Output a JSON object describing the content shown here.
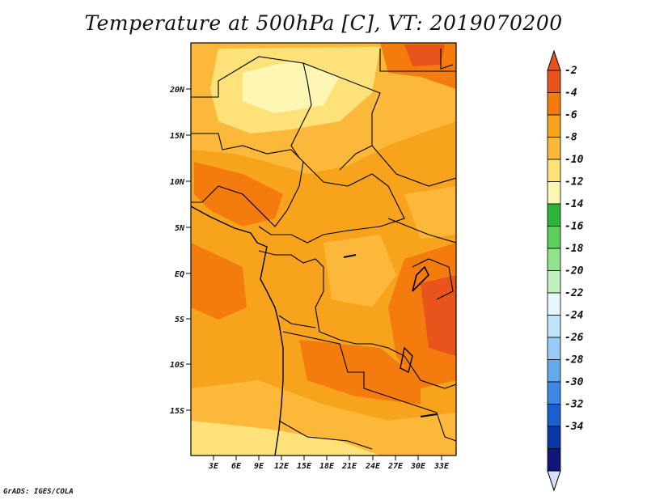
{
  "title": "Temperature at 500hPa [C], VT: 2019070200",
  "credit": "GrADS: IGES/COLA",
  "map": {
    "lat_labels": [
      "20N",
      "15N",
      "10N",
      "5N",
      "EQ",
      "5S",
      "10S",
      "15S"
    ],
    "lon_labels": [
      "3E",
      "6E",
      "9E",
      "12E",
      "15E",
      "18E",
      "21E",
      "24E",
      "27E",
      "30E",
      "33E"
    ]
  },
  "colorbar": {
    "labels": [
      "-2",
      "-4",
      "-6",
      "-8",
      "-10",
      "-12",
      "-14",
      "-16",
      "-18",
      "-20",
      "-22",
      "-24",
      "-26",
      "-28",
      "-30",
      "-32",
      "-34"
    ],
    "colors": [
      "#e8541c",
      "#f47b0e",
      "#f8a31c",
      "#fbb83a",
      "#fde27a",
      "#fef7b4",
      "#2cb43a",
      "#5ccf5c",
      "#90e28e",
      "#c4f0c0",
      "#e6f8fc",
      "#c2e4fa",
      "#96ccf6",
      "#64aaee",
      "#3c88e2",
      "#1c5ed0",
      "#0a36a8",
      "#101678"
    ],
    "top_arrow_color": "#e8541c",
    "bottom_arrow_color": "#d6e0f8"
  }
}
